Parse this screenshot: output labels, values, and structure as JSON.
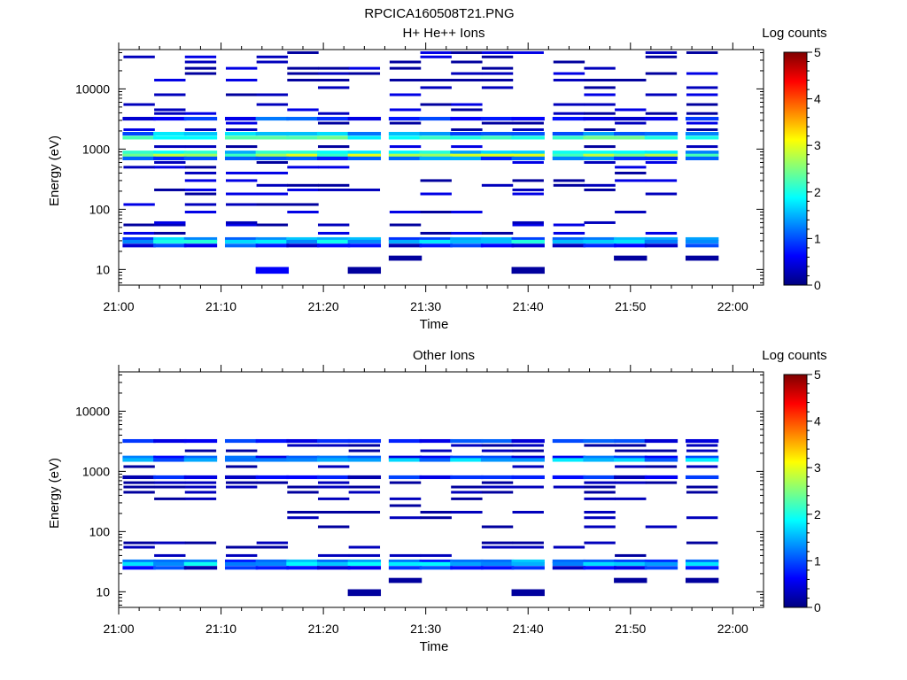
{
  "figure": {
    "file_title": "RPCICA160508T21.PNG"
  },
  "colorscale": {
    "stops": [
      "#00007f",
      "#0000ff",
      "#007fff",
      "#00ffff",
      "#7fff7f",
      "#ffff00",
      "#ff7f00",
      "#ff0000",
      "#7f0000"
    ]
  },
  "chart_data": [
    {
      "type": "heatmap",
      "title": "H+ He++ Ions",
      "xlabel": "Time",
      "ylabel": "Energy (eV)",
      "y_scale": "log",
      "xlim": [
        "21:00",
        "22:03"
      ],
      "ylim": [
        5.5,
        45000
      ],
      "x_ticks": [
        "21:00",
        "21:10",
        "21:20",
        "21:30",
        "21:40",
        "21:50",
        "22:00"
      ],
      "y_ticks": [
        "10",
        "100",
        "1000",
        "10000"
      ],
      "colorbar": {
        "label": "Log counts",
        "range": [
          0,
          5
        ],
        "ticks": [
          "0",
          "1",
          "2",
          "3",
          "4",
          "5"
        ]
      },
      "time_bins": [
        "21:02",
        "21:05",
        "21:08",
        "21:12",
        "21:15",
        "21:18",
        "21:21",
        "21:24",
        "21:28",
        "21:31",
        "21:34",
        "21:37",
        "21:40",
        "21:44",
        "21:47",
        "21:50",
        "21:53",
        "21:57"
      ],
      "bands": [
        {
          "energy": 32,
          "level": 1.3,
          "range": [
            0,
            17
          ]
        },
        {
          "energy": 29,
          "level": 1.6,
          "range": [
            0,
            17
          ]
        },
        {
          "energy": 25,
          "level": 0.7,
          "range": [
            0,
            17
          ]
        },
        {
          "energy": 1800,
          "level": 1.4,
          "range": [
            0,
            17
          ]
        },
        {
          "energy": 1550,
          "level": 2.1,
          "range": [
            0,
            17
          ]
        },
        {
          "energy": 880,
          "level": 1.7,
          "range": [
            0,
            17
          ]
        },
        {
          "energy": 780,
          "level": 2.6,
          "range": [
            0,
            17
          ]
        },
        {
          "energy": 700,
          "level": 1.2,
          "range": [
            0,
            17
          ]
        },
        {
          "energy": 3200,
          "level": 0.8,
          "range": [
            0,
            17
          ]
        }
      ],
      "sparse_levels": [
        0.15,
        0.3,
        0.5
      ],
      "sparse_energies": [
        40,
        55,
        60,
        90,
        120,
        180,
        210,
        250,
        300,
        400,
        500,
        600,
        1100,
        2100,
        2700,
        3900,
        4500,
        5500,
        8000,
        10500,
        14000,
        18000,
        22000,
        28000,
        34000,
        40000
      ],
      "blocks": [
        {
          "bin": 4,
          "energy_range": [
            8.5,
            11
          ],
          "level": 0.6
        },
        {
          "bin": 7,
          "energy_range": [
            8.5,
            11
          ],
          "level": 0.15
        },
        {
          "bin": 8,
          "energy_range": [
            14,
            17
          ],
          "level": 0.15
        },
        {
          "bin": 12,
          "energy_range": [
            8.5,
            11
          ],
          "level": 0.15
        },
        {
          "bin": 15,
          "energy_range": [
            14,
            17
          ],
          "level": 0.15
        },
        {
          "bin": 17,
          "energy_range": [
            14,
            17
          ],
          "level": 0.15
        }
      ]
    },
    {
      "type": "heatmap",
      "title": "Other Ions",
      "xlabel": "Time",
      "ylabel": "Energy (eV)",
      "y_scale": "log",
      "xlim": [
        "21:00",
        "22:03"
      ],
      "ylim": [
        5.5,
        45000
      ],
      "x_ticks": [
        "21:00",
        "21:10",
        "21:20",
        "21:30",
        "21:40",
        "21:50",
        "22:00"
      ],
      "y_ticks": [
        "10",
        "100",
        "1000",
        "10000"
      ],
      "colorbar": {
        "label": "Log counts",
        "range": [
          0,
          5
        ],
        "ticks": [
          "0",
          "1",
          "2",
          "3",
          "4",
          "5"
        ]
      },
      "time_bins": [
        "21:02",
        "21:05",
        "21:08",
        "21:12",
        "21:15",
        "21:18",
        "21:21",
        "21:24",
        "21:28",
        "21:31",
        "21:34",
        "21:37",
        "21:40",
        "21:44",
        "21:47",
        "21:50",
        "21:53",
        "21:57"
      ],
      "bands": [
        {
          "energy": 32,
          "level": 1.2,
          "range": [
            0,
            17
          ]
        },
        {
          "energy": 29,
          "level": 1.5,
          "range": [
            0,
            17
          ]
        },
        {
          "energy": 25,
          "level": 0.6,
          "range": [
            0,
            17
          ]
        },
        {
          "energy": 1700,
          "level": 0.9,
          "range": [
            0,
            17
          ]
        },
        {
          "energy": 1550,
          "level": 1.4,
          "range": [
            0,
            17
          ]
        },
        {
          "energy": 800,
          "level": 0.6,
          "range": [
            0,
            17
          ]
        },
        {
          "energy": 3200,
          "level": 0.7,
          "range": [
            0,
            17
          ]
        }
      ],
      "sparse_levels": [
        0.15,
        0.3
      ],
      "sparse_energies": [
        40,
        55,
        65,
        120,
        170,
        210,
        270,
        350,
        450,
        550,
        650,
        1200,
        2200,
        2700
      ],
      "blocks": [
        {
          "bin": 7,
          "energy_range": [
            8.5,
            11
          ],
          "level": 0.15
        },
        {
          "bin": 8,
          "energy_range": [
            14,
            17
          ],
          "level": 0.15
        },
        {
          "bin": 12,
          "energy_range": [
            8.5,
            11
          ],
          "level": 0.15
        },
        {
          "bin": 15,
          "energy_range": [
            14,
            17
          ],
          "level": 0.15
        },
        {
          "bin": 17,
          "energy_range": [
            14,
            17
          ],
          "level": 0.15
        }
      ]
    }
  ]
}
